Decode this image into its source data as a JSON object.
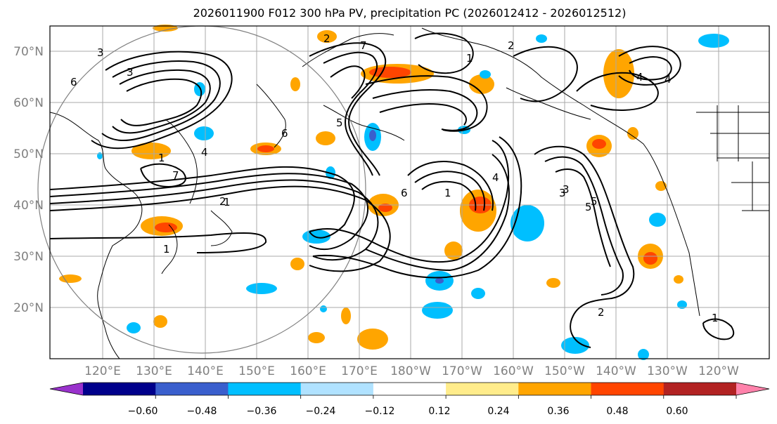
{
  "title": "2026011900 F012 300 hPa PV, precipitation PC (2026012412 - 2026012512)",
  "lat_labels": [
    "70°N",
    "60°N",
    "50°N",
    "40°N",
    "30°N",
    "20°N"
  ],
  "lon_labels": [
    "120°E",
    "130°E",
    "140°E",
    "150°E",
    "160°E",
    "170°E",
    "180°W",
    "170°W",
    "160°W",
    "150°W",
    "140°W",
    "130°W",
    "120°W"
  ],
  "colorbar": {
    "ticks": [
      "−0.60",
      "−0.48",
      "−0.36",
      "−0.24",
      "−0.12",
      "0.12",
      "0.24",
      "0.36",
      "0.48",
      "0.60"
    ],
    "colors": [
      "#9932cc",
      "#00008b",
      "#3a5fcd",
      "#00bfff",
      "#b0e2ff",
      "#ffffff",
      "#ffec8b",
      "#ffa500",
      "#ff4500",
      "#b22222",
      "#ff82ab"
    ]
  },
  "contour_labels": [
    "1",
    "2",
    "3",
    "4",
    "5",
    "6",
    "7",
    "1",
    "2",
    "3",
    "4",
    "5",
    "6",
    "7",
    "1",
    "2",
    "3",
    "4",
    "5",
    "6",
    "1",
    "1",
    "2",
    "1",
    "4",
    "3"
  ],
  "colors": {
    "positive_mid": "#ffa500",
    "positive_high": "#ff4500",
    "positive_low": "#ffec8b",
    "negative_mid": "#00bfff",
    "negative_high": "#3a5fcd",
    "negative_low": "#b0e2ff"
  }
}
